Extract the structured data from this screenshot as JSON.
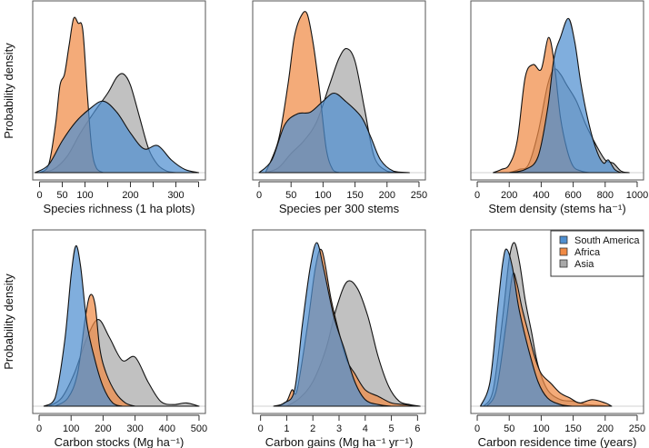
{
  "figure": {
    "ylabel": "Probability density",
    "colors": {
      "South America": "#4f8fd0",
      "Africa": "#f08a45",
      "Asia": "#a9a9a9"
    }
  },
  "legend": {
    "placement": "top-right of panel 6",
    "entries": [
      "South America",
      "Africa",
      "Asia"
    ]
  },
  "chart_data": [
    {
      "type": "area",
      "title": "",
      "xlabel": "Species richness (1 ha plots)",
      "ylabel": "Probability density",
      "xlim": [
        -15,
        365
      ],
      "ticks": [
        0,
        50,
        100,
        150,
        200,
        250,
        300,
        350
      ],
      "tick_labels": [
        "0",
        "50",
        "100",
        "",
        "200",
        "",
        "300",
        ""
      ],
      "ymax": 1.0,
      "series": [
        {
          "name": "Asia",
          "x": [
            0,
            30,
            60,
            90,
            120,
            150,
            170,
            185,
            200,
            220,
            240,
            260,
            280,
            300
          ],
          "y": [
            0,
            0.02,
            0.1,
            0.25,
            0.38,
            0.5,
            0.6,
            0.62,
            0.55,
            0.35,
            0.15,
            0.05,
            0.01,
            0
          ]
        },
        {
          "name": "Africa",
          "x": [
            0,
            20,
            35,
            45,
            55,
            65,
            75,
            85,
            95,
            105,
            115,
            125,
            140
          ],
          "y": [
            0,
            0.05,
            0.3,
            0.55,
            0.62,
            0.8,
            0.97,
            0.94,
            0.9,
            0.5,
            0.15,
            0.03,
            0
          ]
        },
        {
          "name": "South America",
          "x": [
            -10,
            20,
            50,
            80,
            110,
            140,
            170,
            200,
            230,
            260,
            290,
            320,
            350
          ],
          "y": [
            0,
            0.05,
            0.2,
            0.32,
            0.4,
            0.45,
            0.38,
            0.25,
            0.15,
            0.17,
            0.08,
            0.02,
            0
          ]
        }
      ]
    },
    {
      "type": "area",
      "title": "",
      "xlabel": "Species per 300 stems",
      "ylabel": "",
      "xlim": [
        -10,
        260
      ],
      "ticks": [
        0,
        50,
        100,
        150,
        200,
        250
      ],
      "tick_labels": [
        "0",
        "50",
        "100",
        "150",
        "200",
        "250"
      ],
      "ymax": 1.0,
      "series": [
        {
          "name": "Asia",
          "x": [
            10,
            30,
            50,
            70,
            90,
            110,
            125,
            137,
            150,
            165,
            180,
            200,
            220
          ],
          "y": [
            0,
            0.03,
            0.12,
            0.2,
            0.32,
            0.55,
            0.72,
            0.78,
            0.7,
            0.4,
            0.1,
            0.01,
            0
          ]
        },
        {
          "name": "Africa",
          "x": [
            10,
            30,
            45,
            55,
            65,
            75,
            85,
            95,
            105,
            115,
            125
          ],
          "y": [
            0,
            0.2,
            0.55,
            0.85,
            0.98,
            1.0,
            0.8,
            0.5,
            0.15,
            0.02,
            0
          ]
        },
        {
          "name": "South America",
          "x": [
            0,
            20,
            40,
            60,
            80,
            100,
            117,
            135,
            160,
            175,
            190,
            210,
            235
          ],
          "y": [
            0,
            0.08,
            0.3,
            0.37,
            0.38,
            0.45,
            0.5,
            0.45,
            0.35,
            0.22,
            0.08,
            0.01,
            0
          ]
        }
      ]
    },
    {
      "type": "area",
      "title": "",
      "xlabel": "Stem density (stems ha⁻¹)",
      "ylabel": "",
      "xlim": [
        -40,
        1040
      ],
      "ticks": [
        0,
        200,
        400,
        600,
        800,
        1000
      ],
      "tick_labels": [
        "0",
        "200",
        "400",
        "600",
        "800",
        "1000"
      ],
      "ymax": 1.0,
      "series": [
        {
          "name": "Asia",
          "x": [
            200,
            260,
            320,
            380,
            440,
            480,
            520,
            560,
            620,
            680,
            740,
            800,
            850,
            900,
            950
          ],
          "y": [
            0,
            0.02,
            0.05,
            0.25,
            0.55,
            0.65,
            0.62,
            0.55,
            0.45,
            0.3,
            0.18,
            0.08,
            0.06,
            0.01,
            0
          ]
        },
        {
          "name": "Africa",
          "x": [
            100,
            150,
            200,
            250,
            300,
            350,
            400,
            445,
            480,
            520,
            560,
            600,
            650,
            700
          ],
          "y": [
            0,
            0.02,
            0.05,
            0.2,
            0.6,
            0.68,
            0.65,
            0.85,
            0.7,
            0.35,
            0.15,
            0.04,
            0.01,
            0
          ]
        },
        {
          "name": "South America",
          "x": [
            200,
            300,
            380,
            440,
            480,
            520,
            570,
            610,
            650,
            700,
            750,
            790,
            820,
            860,
            900
          ],
          "y": [
            0,
            0.02,
            0.1,
            0.4,
            0.72,
            0.85,
            0.97,
            0.82,
            0.55,
            0.3,
            0.13,
            0.06,
            0.08,
            0.02,
            0
          ]
        }
      ]
    },
    {
      "type": "area",
      "title": "",
      "xlabel": "Carbon stocks (Mg ha⁻¹)",
      "ylabel": "Probability density",
      "xlim": [
        -20,
        520
      ],
      "ticks": [
        0,
        100,
        200,
        300,
        400,
        500
      ],
      "tick_labels": [
        "0",
        "100",
        "200",
        "300",
        "400",
        "500"
      ],
      "ymax": 1.0,
      "series": [
        {
          "name": "Asia",
          "x": [
            30,
            70,
            110,
            150,
            185,
            220,
            260,
            300,
            340,
            380,
            420,
            460,
            500
          ],
          "y": [
            0,
            0.05,
            0.2,
            0.42,
            0.53,
            0.42,
            0.28,
            0.3,
            0.15,
            0.03,
            0.01,
            0.02,
            0
          ]
        },
        {
          "name": "Africa",
          "x": [
            50,
            90,
            120,
            145,
            160,
            175,
            190,
            210,
            240,
            270,
            300
          ],
          "y": [
            0,
            0.05,
            0.2,
            0.55,
            0.68,
            0.62,
            0.35,
            0.2,
            0.08,
            0.02,
            0
          ]
        },
        {
          "name": "South America",
          "x": [
            15,
            50,
            80,
            100,
            115,
            130,
            150,
            175,
            200,
            230,
            260
          ],
          "y": [
            0,
            0.05,
            0.4,
            0.8,
            0.98,
            0.85,
            0.5,
            0.28,
            0.12,
            0.02,
            0
          ]
        }
      ]
    },
    {
      "type": "area",
      "title": "",
      "xlabel": "Carbon gains (Mg ha⁻¹ yr⁻¹)",
      "ylabel": "",
      "xlim": [
        -0.3,
        6.3
      ],
      "ticks": [
        0,
        1,
        2,
        3,
        4,
        5,
        6
      ],
      "tick_labels": [
        "0",
        "1",
        "2",
        "3",
        "4",
        "5",
        "6"
      ],
      "ymax": 1.0,
      "series": [
        {
          "name": "Asia",
          "x": [
            1.0,
            1.5,
            2.0,
            2.5,
            2.9,
            3.3,
            3.7,
            4.1,
            4.5,
            4.9,
            5.3,
            5.7,
            6.1
          ],
          "y": [
            0,
            0.05,
            0.15,
            0.35,
            0.6,
            0.76,
            0.72,
            0.55,
            0.3,
            0.12,
            0.03,
            0.01,
            0
          ]
        },
        {
          "name": "Africa",
          "x": [
            0.7,
            1.0,
            1.2,
            1.4,
            1.8,
            2.1,
            2.35,
            2.7,
            3.0,
            3.3,
            3.6,
            4.0,
            4.5,
            5.0,
            5.5,
            6.0
          ],
          "y": [
            0,
            0.03,
            0.1,
            0.1,
            0.5,
            0.85,
            0.95,
            0.65,
            0.45,
            0.28,
            0.2,
            0.1,
            0.06,
            0.02,
            0.01,
            0
          ]
        },
        {
          "name": "South America",
          "x": [
            0.5,
            0.9,
            1.3,
            1.6,
            1.9,
            2.15,
            2.4,
            2.8,
            3.2,
            3.6,
            4.0,
            4.5,
            5.0
          ],
          "y": [
            0,
            0.02,
            0.1,
            0.5,
            0.85,
            1.0,
            0.85,
            0.55,
            0.35,
            0.15,
            0.04,
            0.01,
            0
          ]
        }
      ]
    },
    {
      "type": "area",
      "title": "",
      "xlabel": "Carbon residence time (years)",
      "ylabel": "",
      "xlim": [
        -10,
        260
      ],
      "ticks": [
        0,
        50,
        100,
        150,
        200,
        250
      ],
      "tick_labels": [
        "0",
        "50",
        "100",
        "150",
        "200",
        "250"
      ],
      "ymax": 1.0,
      "series": [
        {
          "name": "Asia",
          "x": [
            10,
            25,
            40,
            50,
            58,
            66,
            75,
            85,
            95,
            110,
            130,
            150,
            170,
            190,
            210
          ],
          "y": [
            0,
            0.1,
            0.55,
            0.9,
            1.0,
            0.88,
            0.65,
            0.45,
            0.25,
            0.1,
            0.04,
            0.03,
            0.01,
            0.005,
            0
          ]
        },
        {
          "name": "Africa",
          "x": [
            15,
            30,
            45,
            55,
            62,
            70,
            80,
            90,
            100,
            115,
            130,
            145,
            160,
            180,
            200,
            210
          ],
          "y": [
            0,
            0.1,
            0.5,
            0.8,
            0.75,
            0.6,
            0.45,
            0.3,
            0.2,
            0.14,
            0.08,
            0.05,
            0.02,
            0.04,
            0.02,
            0
          ]
        },
        {
          "name": "South America",
          "x": [
            5,
            20,
            32,
            40,
            46,
            55,
            65,
            80,
            95,
            110,
            130,
            150,
            170
          ],
          "y": [
            0,
            0.15,
            0.6,
            0.88,
            0.96,
            0.85,
            0.6,
            0.35,
            0.15,
            0.05,
            0.01,
            0,
            0
          ]
        }
      ]
    }
  ]
}
